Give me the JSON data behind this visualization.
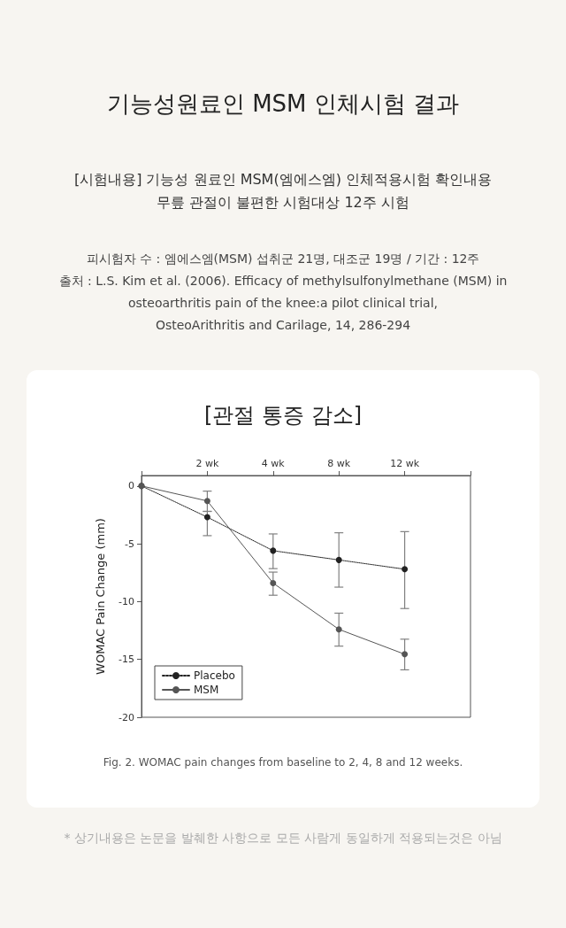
{
  "chart_data": {
    "type": "line",
    "title": "기능성원료인 MSM 인체시험 결과",
    "subtitle": "[관절 통증 감소]",
    "ylabel": "WOMAC Pain Change (mm)",
    "categories": [
      null,
      "2 wk",
      "4 wk",
      "8 wk",
      "12 wk"
    ],
    "series": [
      {
        "name": "Placebo",
        "color": "#222222",
        "line_style": "dotted",
        "marker": "circle",
        "values": [
          0,
          -2.7,
          -5.6,
          -6.4,
          -7.2
        ],
        "errors": [
          null,
          [
            -4.3,
            -2.2
          ],
          [
            -7.15,
            -4.15
          ],
          [
            -8.75,
            -4.05
          ],
          [
            -10.6,
            -3.95
          ]
        ]
      },
      {
        "name": "MSM",
        "color": "#555555",
        "line_style": "solid",
        "marker": "circle",
        "values": [
          0,
          -1.3,
          -8.4,
          -12.4,
          -14.55
        ],
        "errors": [
          null,
          [
            -2.2,
            -0.45
          ],
          [
            -9.45,
            -7.45
          ],
          [
            -13.85,
            -11.0
          ],
          [
            -15.9,
            -13.25
          ]
        ]
      }
    ],
    "ylim": [
      -20,
      0.9
    ],
    "yticks": [
      0,
      -5,
      -10,
      -15,
      -20
    ],
    "grid": false,
    "legend": "bottom left",
    "annotations": [
      "[시험내용] 기능성 원료인 MSM(엠에스엠) 인체적용시험 확인내용",
      "무릎 관절이 불편한 시험대상 12주 시험",
      "피시험자 수 : 엠에스엠(MSM) 섭취군 21명, 대조군 19명 / 기간 : 12주",
      "출처 : L.S. Kim et al. (2006). Efficacy of methylsulfonylmethane (MSM) in",
      "osteoarthritis pain of the knee:a pilot clinical trial,",
      "OsteoArithritis and Carilage, 14, 286-294",
      "Fig. 2. WOMAC pain changes from baseline to 2, 4, 8 and 12 weeks.",
      "* 상기내용은 논문을 발췌한 사항으로 모든 사람게 동일하게 적용되는것은 아님"
    ]
  }
}
